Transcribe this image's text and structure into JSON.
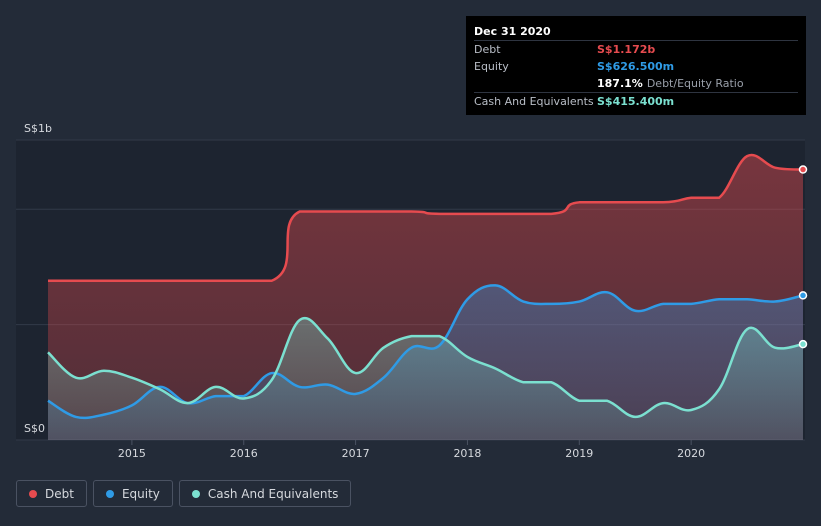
{
  "tooltip": {
    "date": "Dec 31 2020",
    "rows": [
      {
        "label": "Debt",
        "value": "S$1.172b",
        "color": "#e64b4f"
      },
      {
        "label": "Equity",
        "value": "S$626.500m",
        "color": "#2f9be6"
      },
      {
        "label": "",
        "value": "187.1%",
        "extra": "Debt/Equity Ratio",
        "color": "#ffffff"
      },
      {
        "label": "Cash And Equivalents",
        "value": "S$415.400m",
        "color": "#7be0d0"
      }
    ]
  },
  "legend": [
    {
      "label": "Debt",
      "color": "#e64b4f"
    },
    {
      "label": "Equity",
      "color": "#2f9be6"
    },
    {
      "label": "Cash And Equivalents",
      "color": "#7be0d0"
    }
  ],
  "chart_data": {
    "type": "area",
    "ylabel_top": "S$1b",
    "ylabel_bottom": "S$0",
    "ylim": [
      0,
      1.3
    ],
    "xlim": [
      2014.14,
      2020.99
    ],
    "x_ticks": [
      "2015",
      "2016",
      "2017",
      "2018",
      "2019",
      "2020"
    ],
    "x_tick_values": [
      2015,
      2016,
      2017,
      2018,
      2019,
      2020
    ],
    "grid": true,
    "series": [
      {
        "name": "Debt",
        "color": "#e64b4f",
        "points": [
          [
            2014.25,
            0.69
          ],
          [
            2015.0,
            0.69
          ],
          [
            2016.25,
            0.69
          ],
          [
            2016.5,
            0.99
          ],
          [
            2017.5,
            0.99
          ],
          [
            2017.75,
            0.98
          ],
          [
            2018.75,
            0.98
          ],
          [
            2019.0,
            1.03
          ],
          [
            2019.75,
            1.03
          ],
          [
            2020.0,
            1.05
          ],
          [
            2020.25,
            1.05
          ],
          [
            2020.5,
            1.23
          ],
          [
            2020.75,
            1.18
          ],
          [
            2021.0,
            1.172
          ]
        ]
      },
      {
        "name": "Equity",
        "color": "#2f9be6",
        "points": [
          [
            2014.25,
            0.17
          ],
          [
            2014.5,
            0.1
          ],
          [
            2014.75,
            0.11
          ],
          [
            2015.0,
            0.15
          ],
          [
            2015.25,
            0.23
          ],
          [
            2015.5,
            0.16
          ],
          [
            2015.75,
            0.19
          ],
          [
            2016.0,
            0.19
          ],
          [
            2016.25,
            0.29
          ],
          [
            2016.5,
            0.23
          ],
          [
            2016.75,
            0.24
          ],
          [
            2017.0,
            0.2
          ],
          [
            2017.25,
            0.27
          ],
          [
            2017.5,
            0.4
          ],
          [
            2017.75,
            0.41
          ],
          [
            2018.0,
            0.61
          ],
          [
            2018.25,
            0.67
          ],
          [
            2018.5,
            0.6
          ],
          [
            2018.75,
            0.59
          ],
          [
            2019.0,
            0.6
          ],
          [
            2019.25,
            0.64
          ],
          [
            2019.5,
            0.56
          ],
          [
            2019.75,
            0.59
          ],
          [
            2020.0,
            0.59
          ],
          [
            2020.25,
            0.61
          ],
          [
            2020.5,
            0.61
          ],
          [
            2020.75,
            0.6
          ],
          [
            2021.0,
            0.6265
          ]
        ]
      },
      {
        "name": "Cash And Equivalents",
        "color": "#7be0d0",
        "points": [
          [
            2014.25,
            0.38
          ],
          [
            2014.5,
            0.27
          ],
          [
            2014.75,
            0.3
          ],
          [
            2015.0,
            0.27
          ],
          [
            2015.25,
            0.22
          ],
          [
            2015.5,
            0.16
          ],
          [
            2015.75,
            0.23
          ],
          [
            2016.0,
            0.18
          ],
          [
            2016.25,
            0.26
          ],
          [
            2016.5,
            0.52
          ],
          [
            2016.75,
            0.44
          ],
          [
            2017.0,
            0.29
          ],
          [
            2017.25,
            0.4
          ],
          [
            2017.5,
            0.45
          ],
          [
            2017.75,
            0.45
          ],
          [
            2018.0,
            0.36
          ],
          [
            2018.25,
            0.31
          ],
          [
            2018.5,
            0.25
          ],
          [
            2018.75,
            0.25
          ],
          [
            2019.0,
            0.17
          ],
          [
            2019.25,
            0.17
          ],
          [
            2019.5,
            0.1
          ],
          [
            2019.75,
            0.16
          ],
          [
            2020.0,
            0.13
          ],
          [
            2020.25,
            0.22
          ],
          [
            2020.5,
            0.48
          ],
          [
            2020.75,
            0.4
          ],
          [
            2021.0,
            0.4154
          ]
        ]
      }
    ]
  }
}
